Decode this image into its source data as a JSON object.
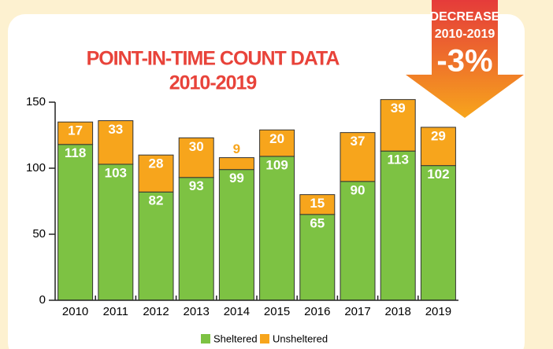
{
  "chart_data": {
    "type": "stacked-bar",
    "title": "POINT-IN-TIME COUNT DATA",
    "subtitle": "2010-2019",
    "annotation": [
      "DECREASE",
      "2010-2019",
      "-3%"
    ],
    "categories": [
      "2010",
      "2011",
      "2012",
      "2013",
      "2014",
      "2015",
      "2016",
      "2017",
      "2018",
      "2019"
    ],
    "series": [
      {
        "name": "Sheltered",
        "color": "#7dc243",
        "values": [
          118,
          103,
          82,
          93,
          99,
          109,
          65,
          90,
          113,
          102
        ]
      },
      {
        "name": "Unsheltered",
        "color": "#f7a51c",
        "values": [
          17,
          33,
          28,
          30,
          9,
          20,
          15,
          37,
          39,
          29
        ]
      }
    ],
    "ylim": [
      0,
      150
    ],
    "yticks": [
      0,
      50,
      100,
      150
    ],
    "legend": "bottom"
  }
}
